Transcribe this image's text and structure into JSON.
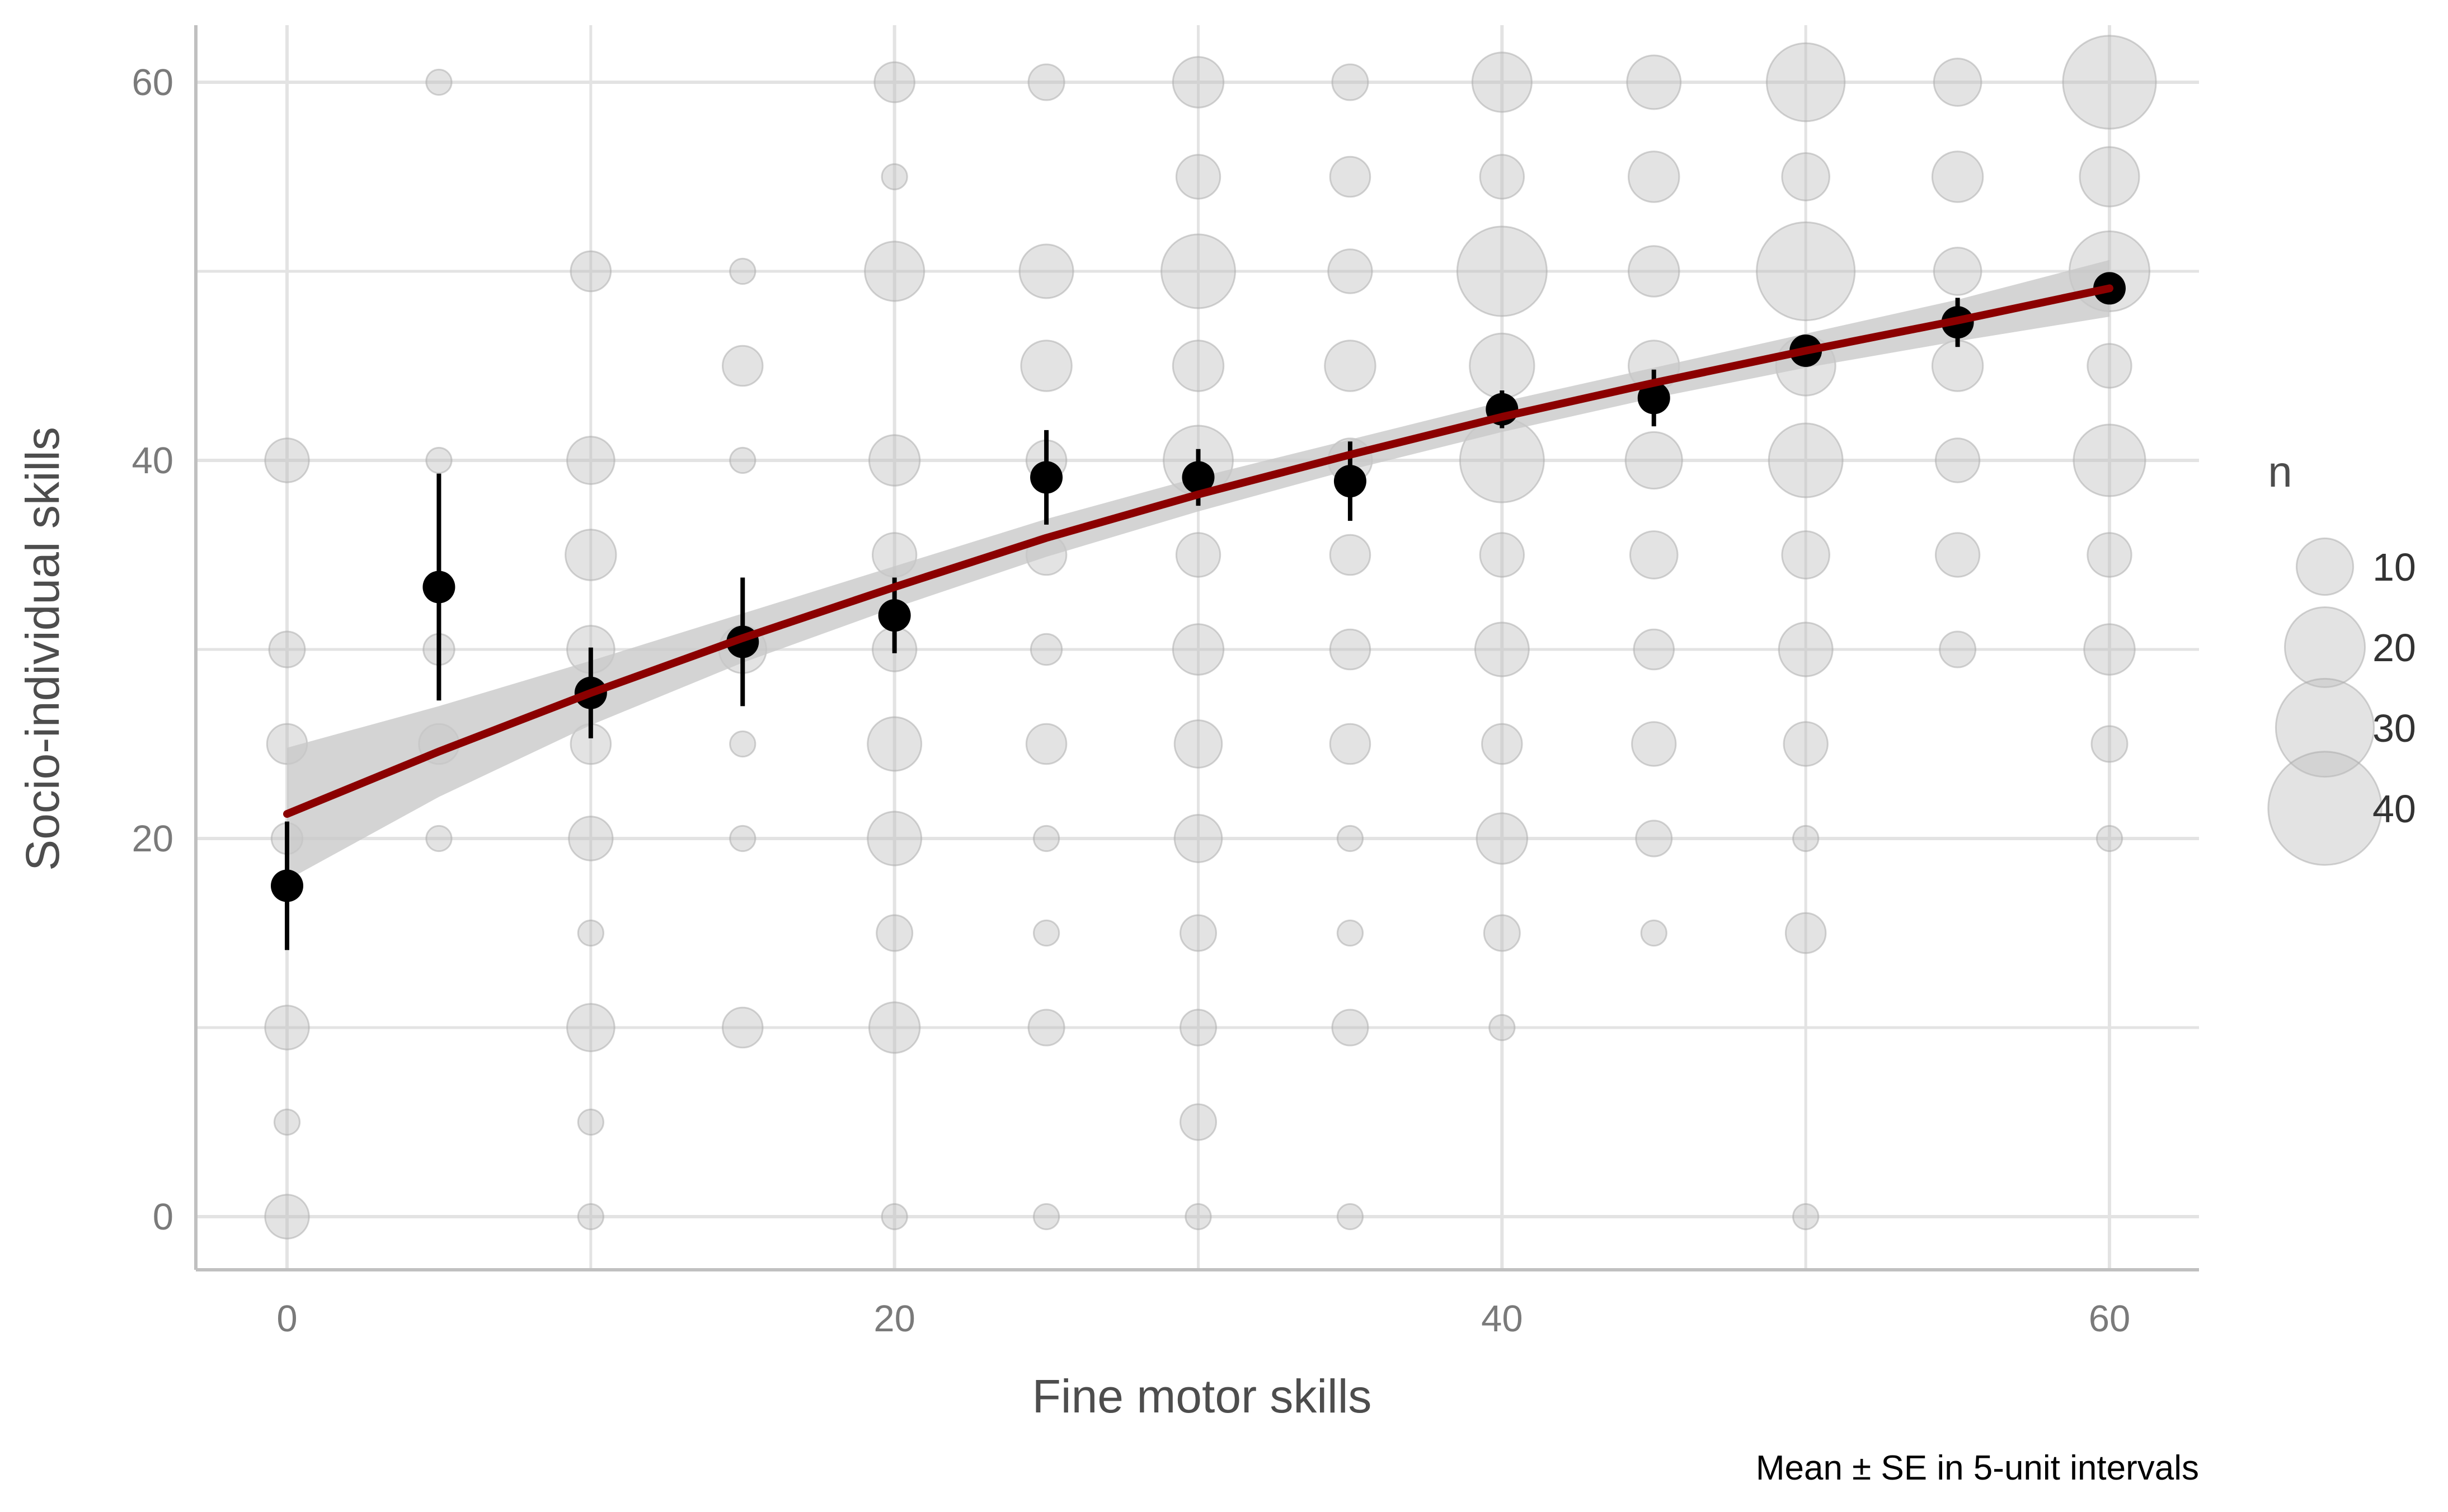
{
  "chart_data": {
    "type": "scatter",
    "xlabel": "Fine motor skills",
    "ylabel": "Socio-individual skills",
    "caption": "Mean ± SE in 5-unit intervals",
    "xlim": [
      -3,
      63
    ],
    "ylim": [
      -3,
      63
    ],
    "x_ticks": [
      0,
      20,
      40,
      60
    ],
    "y_ticks": [
      0,
      20,
      40,
      60
    ],
    "grid": true,
    "legend": {
      "title": "n",
      "position": "right",
      "sizes": [
        10,
        20,
        30,
        40
      ],
      "labels": [
        "10",
        "20",
        "30",
        "40"
      ]
    },
    "colors": {
      "bubble": "#bdbdbd",
      "mean_point": "#000000",
      "fit_line": "#8b0000",
      "ci_band": "#c8c8c8",
      "grid": "#e3e3e3",
      "axis": "#c0c0c0"
    },
    "bubbles": [
      {
        "x": 0,
        "y": 40,
        "n": 6
      },
      {
        "x": 0,
        "y": 30,
        "n": 4
      },
      {
        "x": 0,
        "y": 25,
        "n": 5
      },
      {
        "x": 0,
        "y": 20,
        "n": 3
      },
      {
        "x": 0,
        "y": 10,
        "n": 6
      },
      {
        "x": 0,
        "y": 5,
        "n": 2
      },
      {
        "x": 0,
        "y": 0,
        "n": 6
      },
      {
        "x": 5,
        "y": 60,
        "n": 2
      },
      {
        "x": 5,
        "y": 40,
        "n": 2
      },
      {
        "x": 5,
        "y": 30,
        "n": 3
      },
      {
        "x": 5,
        "y": 25,
        "n": 5
      },
      {
        "x": 5,
        "y": 20,
        "n": 2
      },
      {
        "x": 10,
        "y": 50,
        "n": 5
      },
      {
        "x": 10,
        "y": 40,
        "n": 7
      },
      {
        "x": 10,
        "y": 35,
        "n": 8
      },
      {
        "x": 10,
        "y": 30,
        "n": 7
      },
      {
        "x": 10,
        "y": 25,
        "n": 5
      },
      {
        "x": 10,
        "y": 20,
        "n": 6
      },
      {
        "x": 10,
        "y": 15,
        "n": 2
      },
      {
        "x": 10,
        "y": 10,
        "n": 7
      },
      {
        "x": 10,
        "y": 5,
        "n": 2
      },
      {
        "x": 10,
        "y": 0,
        "n": 2
      },
      {
        "x": 15,
        "y": 50,
        "n": 2
      },
      {
        "x": 15,
        "y": 45,
        "n": 5
      },
      {
        "x": 15,
        "y": 40,
        "n": 2
      },
      {
        "x": 15,
        "y": 30,
        "n": 7
      },
      {
        "x": 15,
        "y": 25,
        "n": 2
      },
      {
        "x": 15,
        "y": 20,
        "n": 2
      },
      {
        "x": 15,
        "y": 10,
        "n": 5
      },
      {
        "x": 20,
        "y": 60,
        "n": 5
      },
      {
        "x": 20,
        "y": 55,
        "n": 2
      },
      {
        "x": 20,
        "y": 50,
        "n": 11
      },
      {
        "x": 20,
        "y": 40,
        "n": 8
      },
      {
        "x": 20,
        "y": 35,
        "n": 6
      },
      {
        "x": 20,
        "y": 30,
        "n": 6
      },
      {
        "x": 20,
        "y": 25,
        "n": 9
      },
      {
        "x": 20,
        "y": 20,
        "n": 9
      },
      {
        "x": 20,
        "y": 15,
        "n": 4
      },
      {
        "x": 20,
        "y": 10,
        "n": 8
      },
      {
        "x": 20,
        "y": 0,
        "n": 2
      },
      {
        "x": 25,
        "y": 60,
        "n": 4
      },
      {
        "x": 25,
        "y": 50,
        "n": 9
      },
      {
        "x": 25,
        "y": 45,
        "n": 8
      },
      {
        "x": 25,
        "y": 40,
        "n": 5
      },
      {
        "x": 25,
        "y": 35,
        "n": 5
      },
      {
        "x": 25,
        "y": 30,
        "n": 3
      },
      {
        "x": 25,
        "y": 25,
        "n": 5
      },
      {
        "x": 25,
        "y": 20,
        "n": 2
      },
      {
        "x": 25,
        "y": 15,
        "n": 2
      },
      {
        "x": 25,
        "y": 10,
        "n": 4
      },
      {
        "x": 25,
        "y": 0,
        "n": 2
      },
      {
        "x": 30,
        "y": 60,
        "n": 8
      },
      {
        "x": 30,
        "y": 55,
        "n": 6
      },
      {
        "x": 30,
        "y": 50,
        "n": 17
      },
      {
        "x": 30,
        "y": 45,
        "n": 8
      },
      {
        "x": 30,
        "y": 40,
        "n": 15
      },
      {
        "x": 30,
        "y": 35,
        "n": 6
      },
      {
        "x": 30,
        "y": 30,
        "n": 8
      },
      {
        "x": 30,
        "y": 25,
        "n": 7
      },
      {
        "x": 30,
        "y": 20,
        "n": 7
      },
      {
        "x": 30,
        "y": 15,
        "n": 4
      },
      {
        "x": 30,
        "y": 10,
        "n": 4
      },
      {
        "x": 30,
        "y": 5,
        "n": 4
      },
      {
        "x": 30,
        "y": 0,
        "n": 2
      },
      {
        "x": 35,
        "y": 60,
        "n": 4
      },
      {
        "x": 35,
        "y": 55,
        "n": 5
      },
      {
        "x": 35,
        "y": 50,
        "n": 6
      },
      {
        "x": 35,
        "y": 45,
        "n": 8
      },
      {
        "x": 35,
        "y": 40,
        "n": 6
      },
      {
        "x": 35,
        "y": 35,
        "n": 5
      },
      {
        "x": 35,
        "y": 30,
        "n": 5
      },
      {
        "x": 35,
        "y": 25,
        "n": 5
      },
      {
        "x": 35,
        "y": 20,
        "n": 2
      },
      {
        "x": 35,
        "y": 15,
        "n": 2
      },
      {
        "x": 35,
        "y": 10,
        "n": 4
      },
      {
        "x": 35,
        "y": 0,
        "n": 2
      },
      {
        "x": 40,
        "y": 60,
        "n": 11
      },
      {
        "x": 40,
        "y": 55,
        "n": 6
      },
      {
        "x": 40,
        "y": 50,
        "n": 25
      },
      {
        "x": 40,
        "y": 45,
        "n": 13
      },
      {
        "x": 40,
        "y": 40,
        "n": 22
      },
      {
        "x": 40,
        "y": 35,
        "n": 6
      },
      {
        "x": 40,
        "y": 30,
        "n": 9
      },
      {
        "x": 40,
        "y": 25,
        "n": 5
      },
      {
        "x": 40,
        "y": 20,
        "n": 8
      },
      {
        "x": 40,
        "y": 15,
        "n": 4
      },
      {
        "x": 40,
        "y": 10,
        "n": 2
      },
      {
        "x": 45,
        "y": 60,
        "n": 9
      },
      {
        "x": 45,
        "y": 55,
        "n": 8
      },
      {
        "x": 45,
        "y": 50,
        "n": 8
      },
      {
        "x": 45,
        "y": 45,
        "n": 8
      },
      {
        "x": 45,
        "y": 40,
        "n": 10
      },
      {
        "x": 45,
        "y": 35,
        "n": 7
      },
      {
        "x": 45,
        "y": 30,
        "n": 5
      },
      {
        "x": 45,
        "y": 25,
        "n": 6
      },
      {
        "x": 45,
        "y": 20,
        "n": 4
      },
      {
        "x": 45,
        "y": 15,
        "n": 2
      },
      {
        "x": 50,
        "y": 60,
        "n": 19
      },
      {
        "x": 50,
        "y": 55,
        "n": 7
      },
      {
        "x": 50,
        "y": 50,
        "n": 30
      },
      {
        "x": 50,
        "y": 45,
        "n": 11
      },
      {
        "x": 50,
        "y": 40,
        "n": 17
      },
      {
        "x": 50,
        "y": 35,
        "n": 7
      },
      {
        "x": 50,
        "y": 30,
        "n": 9
      },
      {
        "x": 50,
        "y": 25,
        "n": 6
      },
      {
        "x": 50,
        "y": 20,
        "n": 2
      },
      {
        "x": 50,
        "y": 15,
        "n": 5
      },
      {
        "x": 50,
        "y": 0,
        "n": 2
      },
      {
        "x": 55,
        "y": 60,
        "n": 7
      },
      {
        "x": 55,
        "y": 55,
        "n": 8
      },
      {
        "x": 55,
        "y": 50,
        "n": 7
      },
      {
        "x": 55,
        "y": 45,
        "n": 8
      },
      {
        "x": 55,
        "y": 40,
        "n": 6
      },
      {
        "x": 55,
        "y": 35,
        "n": 6
      },
      {
        "x": 55,
        "y": 30,
        "n": 4
      },
      {
        "x": 60,
        "y": 60,
        "n": 27
      },
      {
        "x": 60,
        "y": 55,
        "n": 11
      },
      {
        "x": 60,
        "y": 50,
        "n": 20
      },
      {
        "x": 60,
        "y": 45,
        "n": 6
      },
      {
        "x": 60,
        "y": 40,
        "n": 16
      },
      {
        "x": 60,
        "y": 35,
        "n": 6
      },
      {
        "x": 60,
        "y": 30,
        "n": 8
      },
      {
        "x": 60,
        "y": 25,
        "n": 4
      },
      {
        "x": 60,
        "y": 20,
        "n": 2
      }
    ],
    "means": [
      {
        "x": 0,
        "mean": 17.5,
        "lo": 14.1,
        "hi": 20.9
      },
      {
        "x": 5,
        "mean": 33.3,
        "lo": 27.3,
        "hi": 39.3
      },
      {
        "x": 10,
        "mean": 27.7,
        "lo": 25.3,
        "hi": 30.1
      },
      {
        "x": 15,
        "mean": 30.4,
        "lo": 27.0,
        "hi": 33.8
      },
      {
        "x": 20,
        "mean": 31.8,
        "lo": 29.8,
        "hi": 33.8
      },
      {
        "x": 25,
        "mean": 39.1,
        "lo": 36.6,
        "hi": 41.6
      },
      {
        "x": 30,
        "mean": 39.1,
        "lo": 37.6,
        "hi": 40.6
      },
      {
        "x": 35,
        "mean": 38.9,
        "lo": 36.8,
        "hi": 41.0
      },
      {
        "x": 40,
        "mean": 42.7,
        "lo": 41.7,
        "hi": 43.7
      },
      {
        "x": 45,
        "mean": 43.3,
        "lo": 41.8,
        "hi": 44.8
      },
      {
        "x": 50,
        "mean": 45.8,
        "lo": 45.0,
        "hi": 46.6
      },
      {
        "x": 55,
        "mean": 47.3,
        "lo": 46.0,
        "hi": 48.6
      },
      {
        "x": 60,
        "mean": 49.1,
        "lo": 48.4,
        "hi": 49.8
      }
    ],
    "fit": [
      {
        "x": 0,
        "y": 21.3,
        "lo": 17.8,
        "hi": 24.8
      },
      {
        "x": 5,
        "y": 24.6,
        "lo": 22.2,
        "hi": 27.0
      },
      {
        "x": 10,
        "y": 27.7,
        "lo": 26.0,
        "hi": 29.4
      },
      {
        "x": 15,
        "y": 30.6,
        "lo": 29.3,
        "hi": 31.9
      },
      {
        "x": 20,
        "y": 33.3,
        "lo": 32.2,
        "hi": 34.4
      },
      {
        "x": 25,
        "y": 35.9,
        "lo": 34.9,
        "hi": 36.9
      },
      {
        "x": 30,
        "y": 38.2,
        "lo": 37.3,
        "hi": 39.1
      },
      {
        "x": 35,
        "y": 40.3,
        "lo": 39.5,
        "hi": 41.1
      },
      {
        "x": 40,
        "y": 42.3,
        "lo": 41.5,
        "hi": 43.1
      },
      {
        "x": 45,
        "y": 44.1,
        "lo": 43.3,
        "hi": 44.9
      },
      {
        "x": 50,
        "y": 45.8,
        "lo": 44.9,
        "hi": 46.7
      },
      {
        "x": 55,
        "y": 47.4,
        "lo": 46.3,
        "hi": 48.5
      },
      {
        "x": 60,
        "y": 49.1,
        "lo": 47.6,
        "hi": 50.6
      }
    ]
  }
}
